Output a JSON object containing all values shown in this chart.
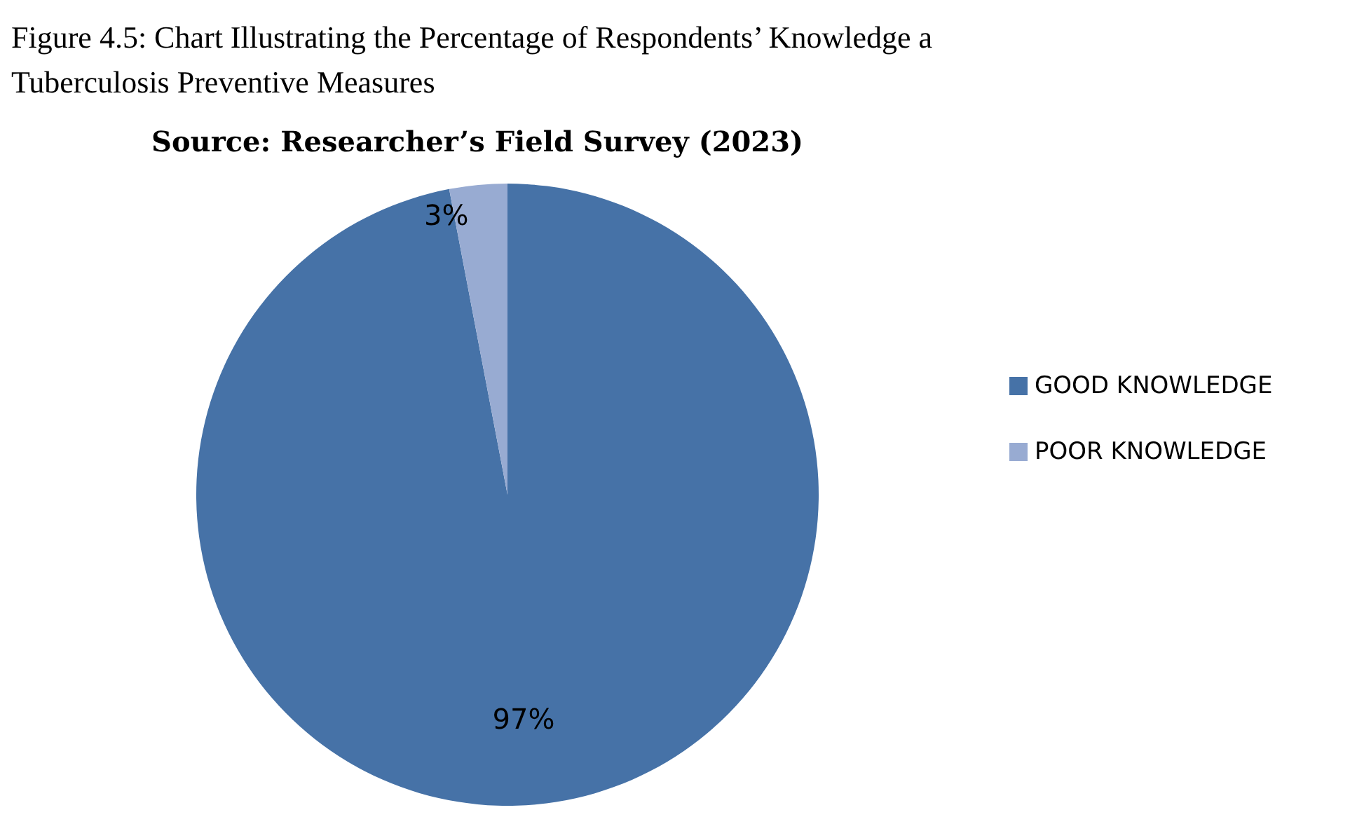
{
  "chart_data": {
    "type": "pie",
    "title": "Figure 4.5: Chart Illustrating the Percentage of Respondents’ Knowledge a\nTuberculosis Preventive Measures",
    "annotations": [
      "Source: Researcher’s Field Survey (2023)"
    ],
    "categories": [
      "GOOD KNOWLEDGE",
      "POOR KNOWLEDGE"
    ],
    "values": [
      97,
      3
    ],
    "colors": [
      "#4672a7",
      "#98abd2"
    ],
    "value_labels": [
      "97%",
      "3%"
    ],
    "legend": "right"
  }
}
